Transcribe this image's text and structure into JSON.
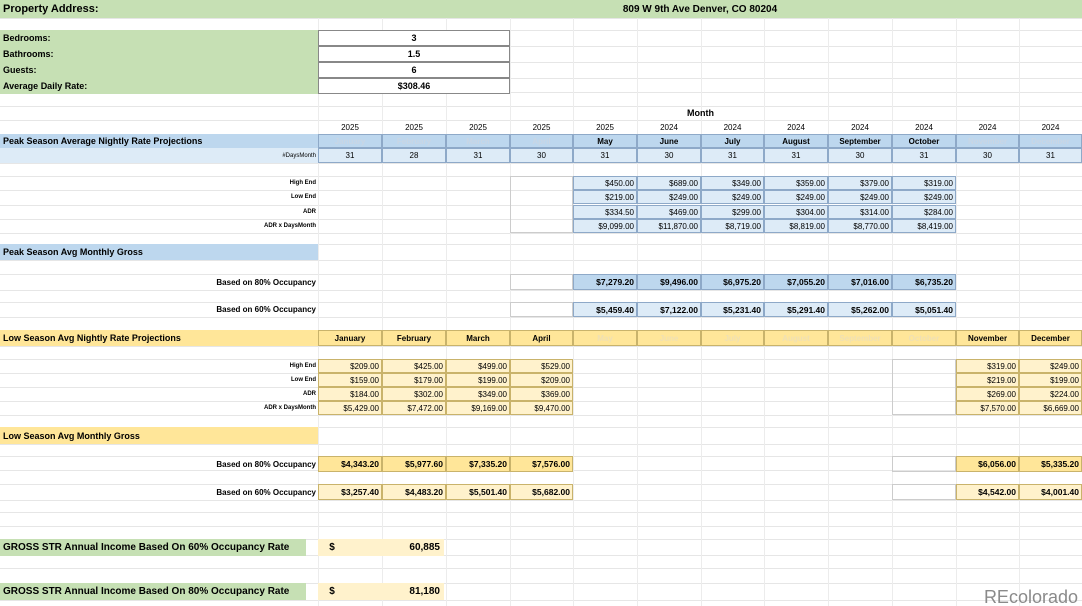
{
  "property": {
    "address_label": "Property Address:",
    "address": "809 W 9th Ave Denver, CO 80204"
  },
  "details": [
    {
      "label": "Bedrooms:",
      "value": "3"
    },
    {
      "label": "Bathrooms:",
      "value": "1.5"
    },
    {
      "label": "Guests:",
      "value": "6"
    },
    {
      "label": "Average Daily Rate:",
      "value": "$308.46"
    }
  ],
  "month_header": "Month",
  "years": [
    "2025",
    "2025",
    "2025",
    "2025",
    "2025",
    "2024",
    "2024",
    "2024",
    "2024",
    "2024",
    "2024",
    "2024"
  ],
  "months": [
    "January",
    "February",
    "March",
    "April",
    "May",
    "June",
    "July",
    "August",
    "September",
    "October",
    "November",
    "December"
  ],
  "peak": {
    "title": "Peak Season Average Nightly Rate Projections",
    "days_label": "#DaysMonth",
    "days": [
      "31",
      "28",
      "31",
      "30",
      "31",
      "30",
      "31",
      "31",
      "30",
      "31",
      "30",
      "31"
    ],
    "row_labels": [
      "High End",
      "Low End",
      "ADR",
      "ADR x DaysMonth"
    ],
    "rows": [
      [
        "$450.00",
        "$689.00",
        "$349.00",
        "$359.00",
        "$379.00",
        "$319.00"
      ],
      [
        "$219.00",
        "$249.00",
        "$249.00",
        "$249.00",
        "$249.00",
        "$249.00"
      ],
      [
        "$334.50",
        "$469.00",
        "$299.00",
        "$304.00",
        "$314.00",
        "$284.00"
      ],
      [
        "$9,099.00",
        "$11,870.00",
        "$8,719.00",
        "$8,819.00",
        "$8,770.00",
        "$8,419.00"
      ]
    ],
    "gross_title": "Peak Season Avg Monthly Gross",
    "occ80_label": "Based on 80% Occupancy",
    "occ80": [
      "$7,279.20",
      "$9,496.00",
      "$6,975.20",
      "$7,055.20",
      "$7,016.00",
      "$6,735.20"
    ],
    "occ60_label": "Based on 60% Occupancy",
    "occ60": [
      "$5,459.40",
      "$7,122.00",
      "$5,231.40",
      "$5,291.40",
      "$5,262.00",
      "$5,051.40"
    ]
  },
  "low": {
    "title": "Low Season  Avg Nightly Rate Projections",
    "row_labels": [
      "High End",
      "Low End",
      "ADR",
      "ADR x DaysMonth"
    ],
    "rows_a": [
      [
        "$209.00",
        "$425.00",
        "$499.00",
        "$529.00"
      ],
      [
        "$159.00",
        "$179.00",
        "$199.00",
        "$209.00"
      ],
      [
        "$184.00",
        "$302.00",
        "$349.00",
        "$369.00"
      ],
      [
        "$5,429.00",
        "$7,472.00",
        "$9,169.00",
        "$9,470.00"
      ]
    ],
    "rows_b": [
      [
        "$319.00",
        "$249.00"
      ],
      [
        "$219.00",
        "$199.00"
      ],
      [
        "$269.00",
        "$224.00"
      ],
      [
        "$7,570.00",
        "$6,669.00"
      ]
    ],
    "gross_title": "Low Season Avg Monthly Gross",
    "occ80_label": "Based on 80% Occupancy",
    "occ80_a": [
      "$4,343.20",
      "$5,977.60",
      "$7,335.20",
      "$7,576.00"
    ],
    "occ80_b": [
      "$6,056.00",
      "$5,335.20"
    ],
    "occ60_label": "Based on 60% Occupancy",
    "occ60_a": [
      "$3,257.40",
      "$4,483.20",
      "$5,501.40",
      "$5,682.00"
    ],
    "occ60_b": [
      "$4,542.00",
      "$4,001.40"
    ]
  },
  "annual": [
    {
      "label": "GROSS STR Annual Income Based On 60% Occupancy Rate",
      "currency": "$",
      "value": "60,885"
    },
    {
      "label": "GROSS STR Annual Income Based On 80% Occupancy Rate",
      "currency": "$",
      "value": "81,180"
    }
  ],
  "watermark": "REcolorado"
}
